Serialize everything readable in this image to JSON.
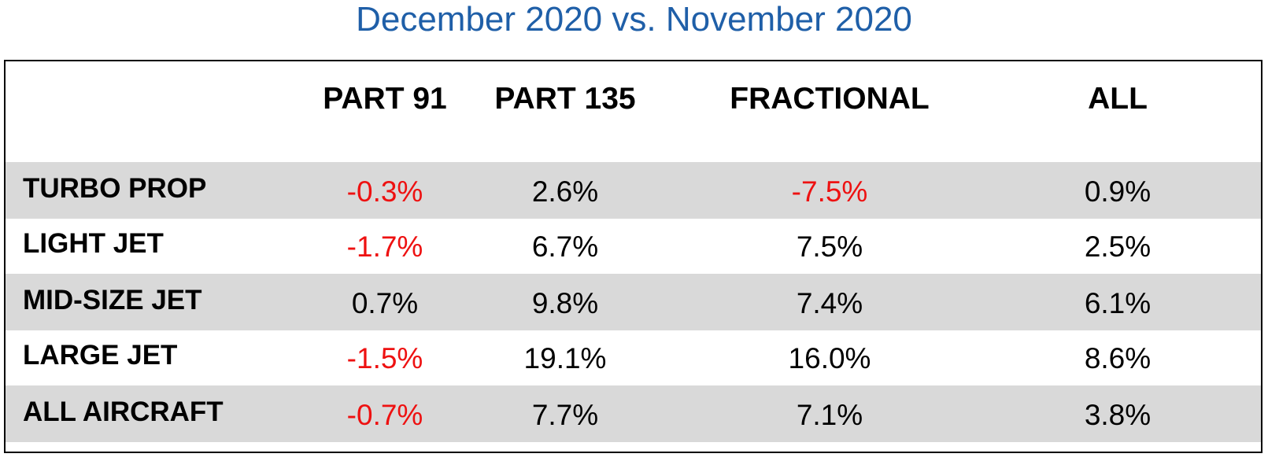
{
  "title": "December 2020 vs. November 2020",
  "negative_color": "#ee1111",
  "positive_color": "#000000",
  "chart_data": {
    "type": "table",
    "title": "December 2020 vs. November 2020",
    "columns": [
      "PART 91",
      "PART 135",
      "FRACTIONAL",
      "ALL"
    ],
    "rows": [
      {
        "label": "TURBO PROP",
        "values": [
          "-0.3%",
          "2.6%",
          "-7.5%",
          "0.9%"
        ]
      },
      {
        "label": "LIGHT JET",
        "values": [
          "-1.7%",
          "6.7%",
          "7.5%",
          "2.5%"
        ]
      },
      {
        "label": "MID-SIZE JET",
        "values": [
          "0.7%",
          "9.8%",
          "7.4%",
          "6.1%"
        ]
      },
      {
        "label": "LARGE JET",
        "values": [
          "-1.5%",
          "19.1%",
          "16.0%",
          "8.6%"
        ]
      },
      {
        "label": "ALL AIRCRAFT",
        "values": [
          "-0.7%",
          "7.7%",
          "7.1%",
          "3.8%"
        ]
      }
    ]
  }
}
